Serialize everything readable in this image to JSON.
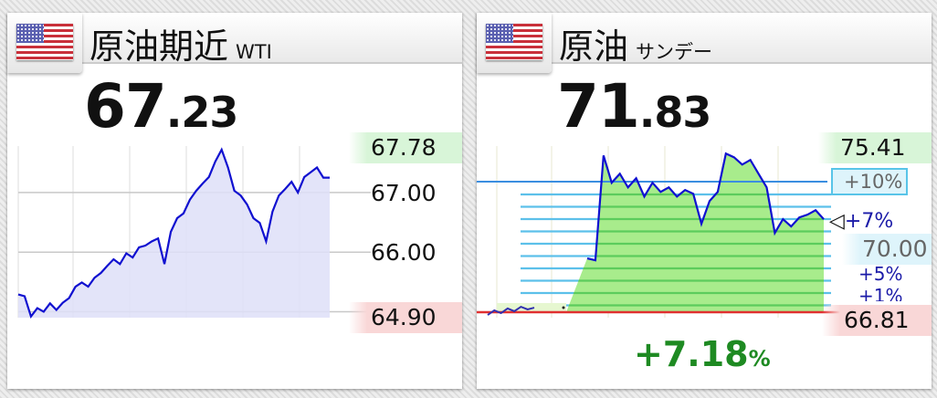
{
  "colors": {
    "line": "#1010d0",
    "fill_left": "#dedff8",
    "fill_right": "#a8ec8c",
    "high_bg": "#d8f5d8",
    "low_bg": "#f9d7d7",
    "change": "#1e8a22",
    "ref_line": "#3b8ee0",
    "base_line": "#e03030"
  },
  "left": {
    "flag_icon": "us-flag",
    "title": "原油期近",
    "subtitle": "WTI",
    "price_int": "67",
    "price_dec": ".23",
    "high_label": "67.78",
    "low_label": "64.90",
    "axis_labels": [
      "67.00",
      "66.00"
    ],
    "chart_data": {
      "type": "area",
      "ylim": [
        64.9,
        67.78
      ],
      "grid": true,
      "yticks": [
        67,
        66,
        65
      ],
      "values": [
        65.29,
        65.26,
        64.92,
        65.06,
        65.0,
        65.14,
        65.03,
        65.15,
        65.23,
        65.42,
        65.49,
        65.42,
        65.57,
        65.65,
        65.77,
        65.88,
        65.8,
        65.98,
        65.91,
        66.08,
        66.11,
        66.18,
        66.23,
        65.8,
        66.34,
        66.57,
        66.65,
        66.88,
        67.03,
        67.15,
        67.26,
        67.52,
        67.72,
        67.42,
        67.03,
        66.95,
        66.8,
        66.57,
        66.49,
        66.18,
        66.68,
        66.95,
        67.06,
        67.18,
        67.0,
        67.26,
        67.34,
        67.42,
        67.25,
        67.25
      ]
    }
  },
  "right": {
    "flag_icon": "us-flag",
    "title": "原油",
    "subtitle": "サンデー",
    "price_int": "71",
    "price_dec": ".83",
    "high_label": "75.41",
    "low_label": "66.81",
    "mid_label": "70.00",
    "ref_label": "+10%",
    "marker_label": "+7%",
    "pct_labels": [
      "+5%",
      "+1%"
    ],
    "change": "+7.18",
    "change_unit": "%",
    "chart_data": {
      "type": "area",
      "ylim": [
        66.81,
        75.41
      ],
      "grid": true,
      "pre_values": [
        66.66,
        66.91,
        66.76,
        67.01,
        66.86,
        67.1,
        66.96,
        67.05
      ],
      "values": [
        69.69,
        69.59,
        75.2,
        73.74,
        74.22,
        73.49,
        73.98,
        73.0,
        73.74,
        73.25,
        73.49,
        73.0,
        73.35,
        73.15,
        71.54,
        72.76,
        73.25,
        75.3,
        75.1,
        74.71,
        74.96,
        74.22,
        73.49,
        71.05,
        71.79,
        71.4,
        71.88,
        72.03,
        72.27,
        71.79
      ]
    }
  }
}
